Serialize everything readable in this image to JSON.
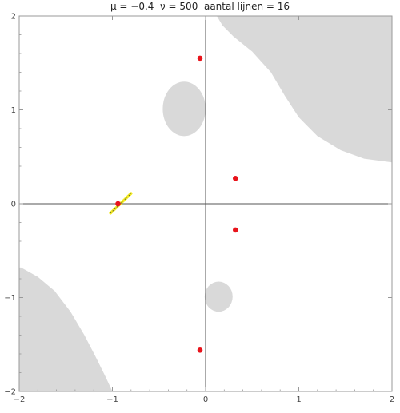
{
  "chart_data": {
    "type": "scatter",
    "title": "μ = −0.4  ν = 500  aantal lijnen = 16",
    "xlim": [
      -2,
      2
    ],
    "ylim": [
      -2,
      2
    ],
    "x_ticks": [
      {
        "value": -2,
        "label": "−2"
      },
      {
        "value": -1,
        "label": "−1"
      },
      {
        "value": 0,
        "label": "0"
      },
      {
        "value": 1,
        "label": "1"
      },
      {
        "value": 2,
        "label": "2"
      }
    ],
    "y_ticks": [
      {
        "value": -2,
        "label": "−2"
      },
      {
        "value": -1,
        "label": "−1"
      },
      {
        "value": 0,
        "label": "0"
      },
      {
        "value": 1,
        "label": "1"
      },
      {
        "value": 2,
        "label": "2"
      }
    ],
    "points": [
      {
        "x": -0.06,
        "y": 1.55
      },
      {
        "x": 0.32,
        "y": 0.27
      },
      {
        "x": 0.32,
        "y": -0.28
      },
      {
        "x": -0.06,
        "y": -1.56
      },
      {
        "x": -0.94,
        "y": 0.0
      }
    ],
    "shaded_regions": [
      {
        "name": "top-right-region",
        "outline": [
          [
            0.12,
            2.0
          ],
          [
            2.0,
            2.0
          ],
          [
            2.0,
            0.44
          ],
          [
            1.7,
            0.48
          ],
          [
            1.45,
            0.57
          ],
          [
            1.2,
            0.72
          ],
          [
            1.0,
            0.92
          ],
          [
            0.85,
            1.15
          ],
          [
            0.7,
            1.4
          ],
          [
            0.5,
            1.62
          ],
          [
            0.3,
            1.78
          ],
          [
            0.18,
            1.9
          ]
        ]
      },
      {
        "name": "bottom-left-region",
        "outline": [
          [
            -2.0,
            -2.0
          ],
          [
            -1.0,
            -2.0
          ],
          [
            -1.07,
            -1.85
          ],
          [
            -1.17,
            -1.65
          ],
          [
            -1.3,
            -1.4
          ],
          [
            -1.45,
            -1.15
          ],
          [
            -1.62,
            -0.93
          ],
          [
            -1.8,
            -0.78
          ],
          [
            -1.98,
            -0.68
          ],
          [
            -2.0,
            -0.68
          ]
        ]
      },
      {
        "name": "upper-oval",
        "cx": -0.23,
        "cy": 1.01,
        "rx": 0.23,
        "ry": 0.29
      },
      {
        "name": "lower-oval",
        "cx": 0.14,
        "cy": -0.99,
        "rx": 0.15,
        "ry": 0.16
      }
    ],
    "line_segment": {
      "name": "yellow-segment",
      "x1": -1.02,
      "y1": -0.1,
      "x2": -0.8,
      "y2": 0.11
    },
    "colors": {
      "point": "#e8131b",
      "region": "#d9d9d9",
      "segment": "#f2ea1f",
      "axis": "#555555",
      "frame": "#999999"
    },
    "grid": false
  }
}
